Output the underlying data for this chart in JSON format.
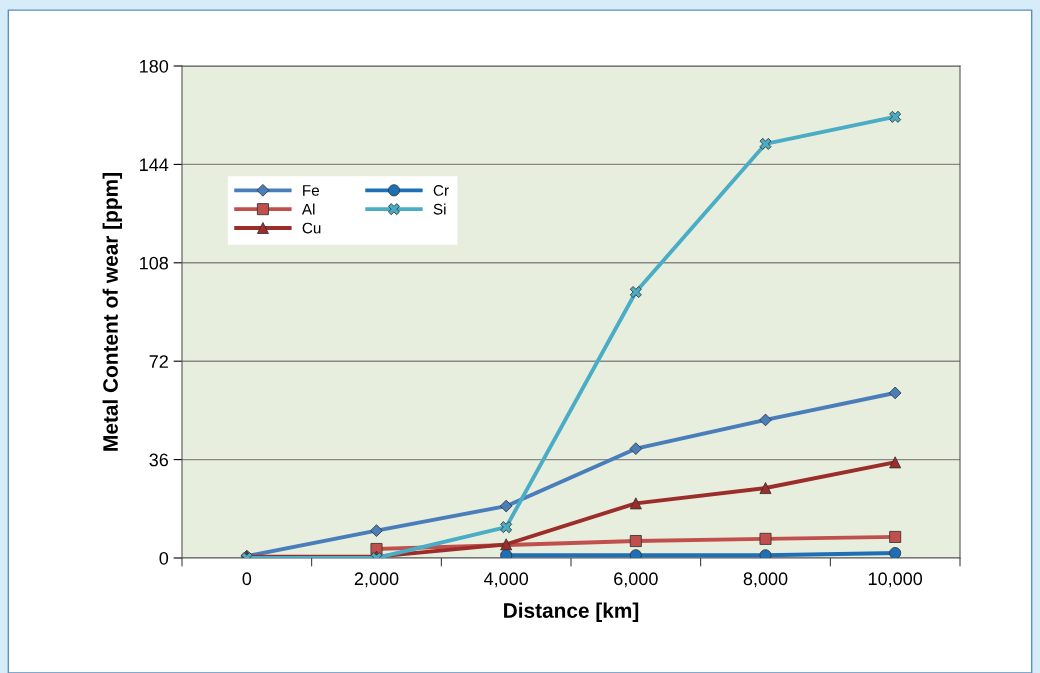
{
  "chart_data": {
    "type": "line",
    "xlabel": "Distance [km]",
    "ylabel": "Metal Content of wear [ppm]",
    "categories": [
      "0",
      "2,000",
      "4,000",
      "6,000",
      "8,000",
      "10,000"
    ],
    "series": [
      {
        "name": "Fe",
        "color": "#4a7ebb",
        "marker": "diamond",
        "values": [
          0.7,
          10,
          19,
          40,
          50.5,
          60.4
        ]
      },
      {
        "name": "Al",
        "color": "#c0504d",
        "marker": "square",
        "values": [
          null,
          3.3,
          null,
          6.2,
          7,
          7.7
        ]
      },
      {
        "name": "Cu",
        "color": "#9b2d2a",
        "marker": "triangle",
        "values": [
          0.5,
          0.5,
          5,
          20,
          25.6,
          35
        ]
      },
      {
        "name": "Cr",
        "color": "#1f6fb5",
        "marker": "circle",
        "values": [
          null,
          null,
          1,
          1,
          1,
          1.8
        ]
      },
      {
        "name": "Si",
        "color": "#4bacc6",
        "marker": "cross",
        "values": [
          0,
          0,
          11.3,
          97.3,
          151.5,
          161.4
        ]
      }
    ],
    "ylim": [
      0,
      180
    ],
    "yticks": [
      0,
      36,
      72,
      108,
      144,
      180
    ],
    "grid": "y",
    "legend": "top left",
    "line_style": "solid"
  }
}
